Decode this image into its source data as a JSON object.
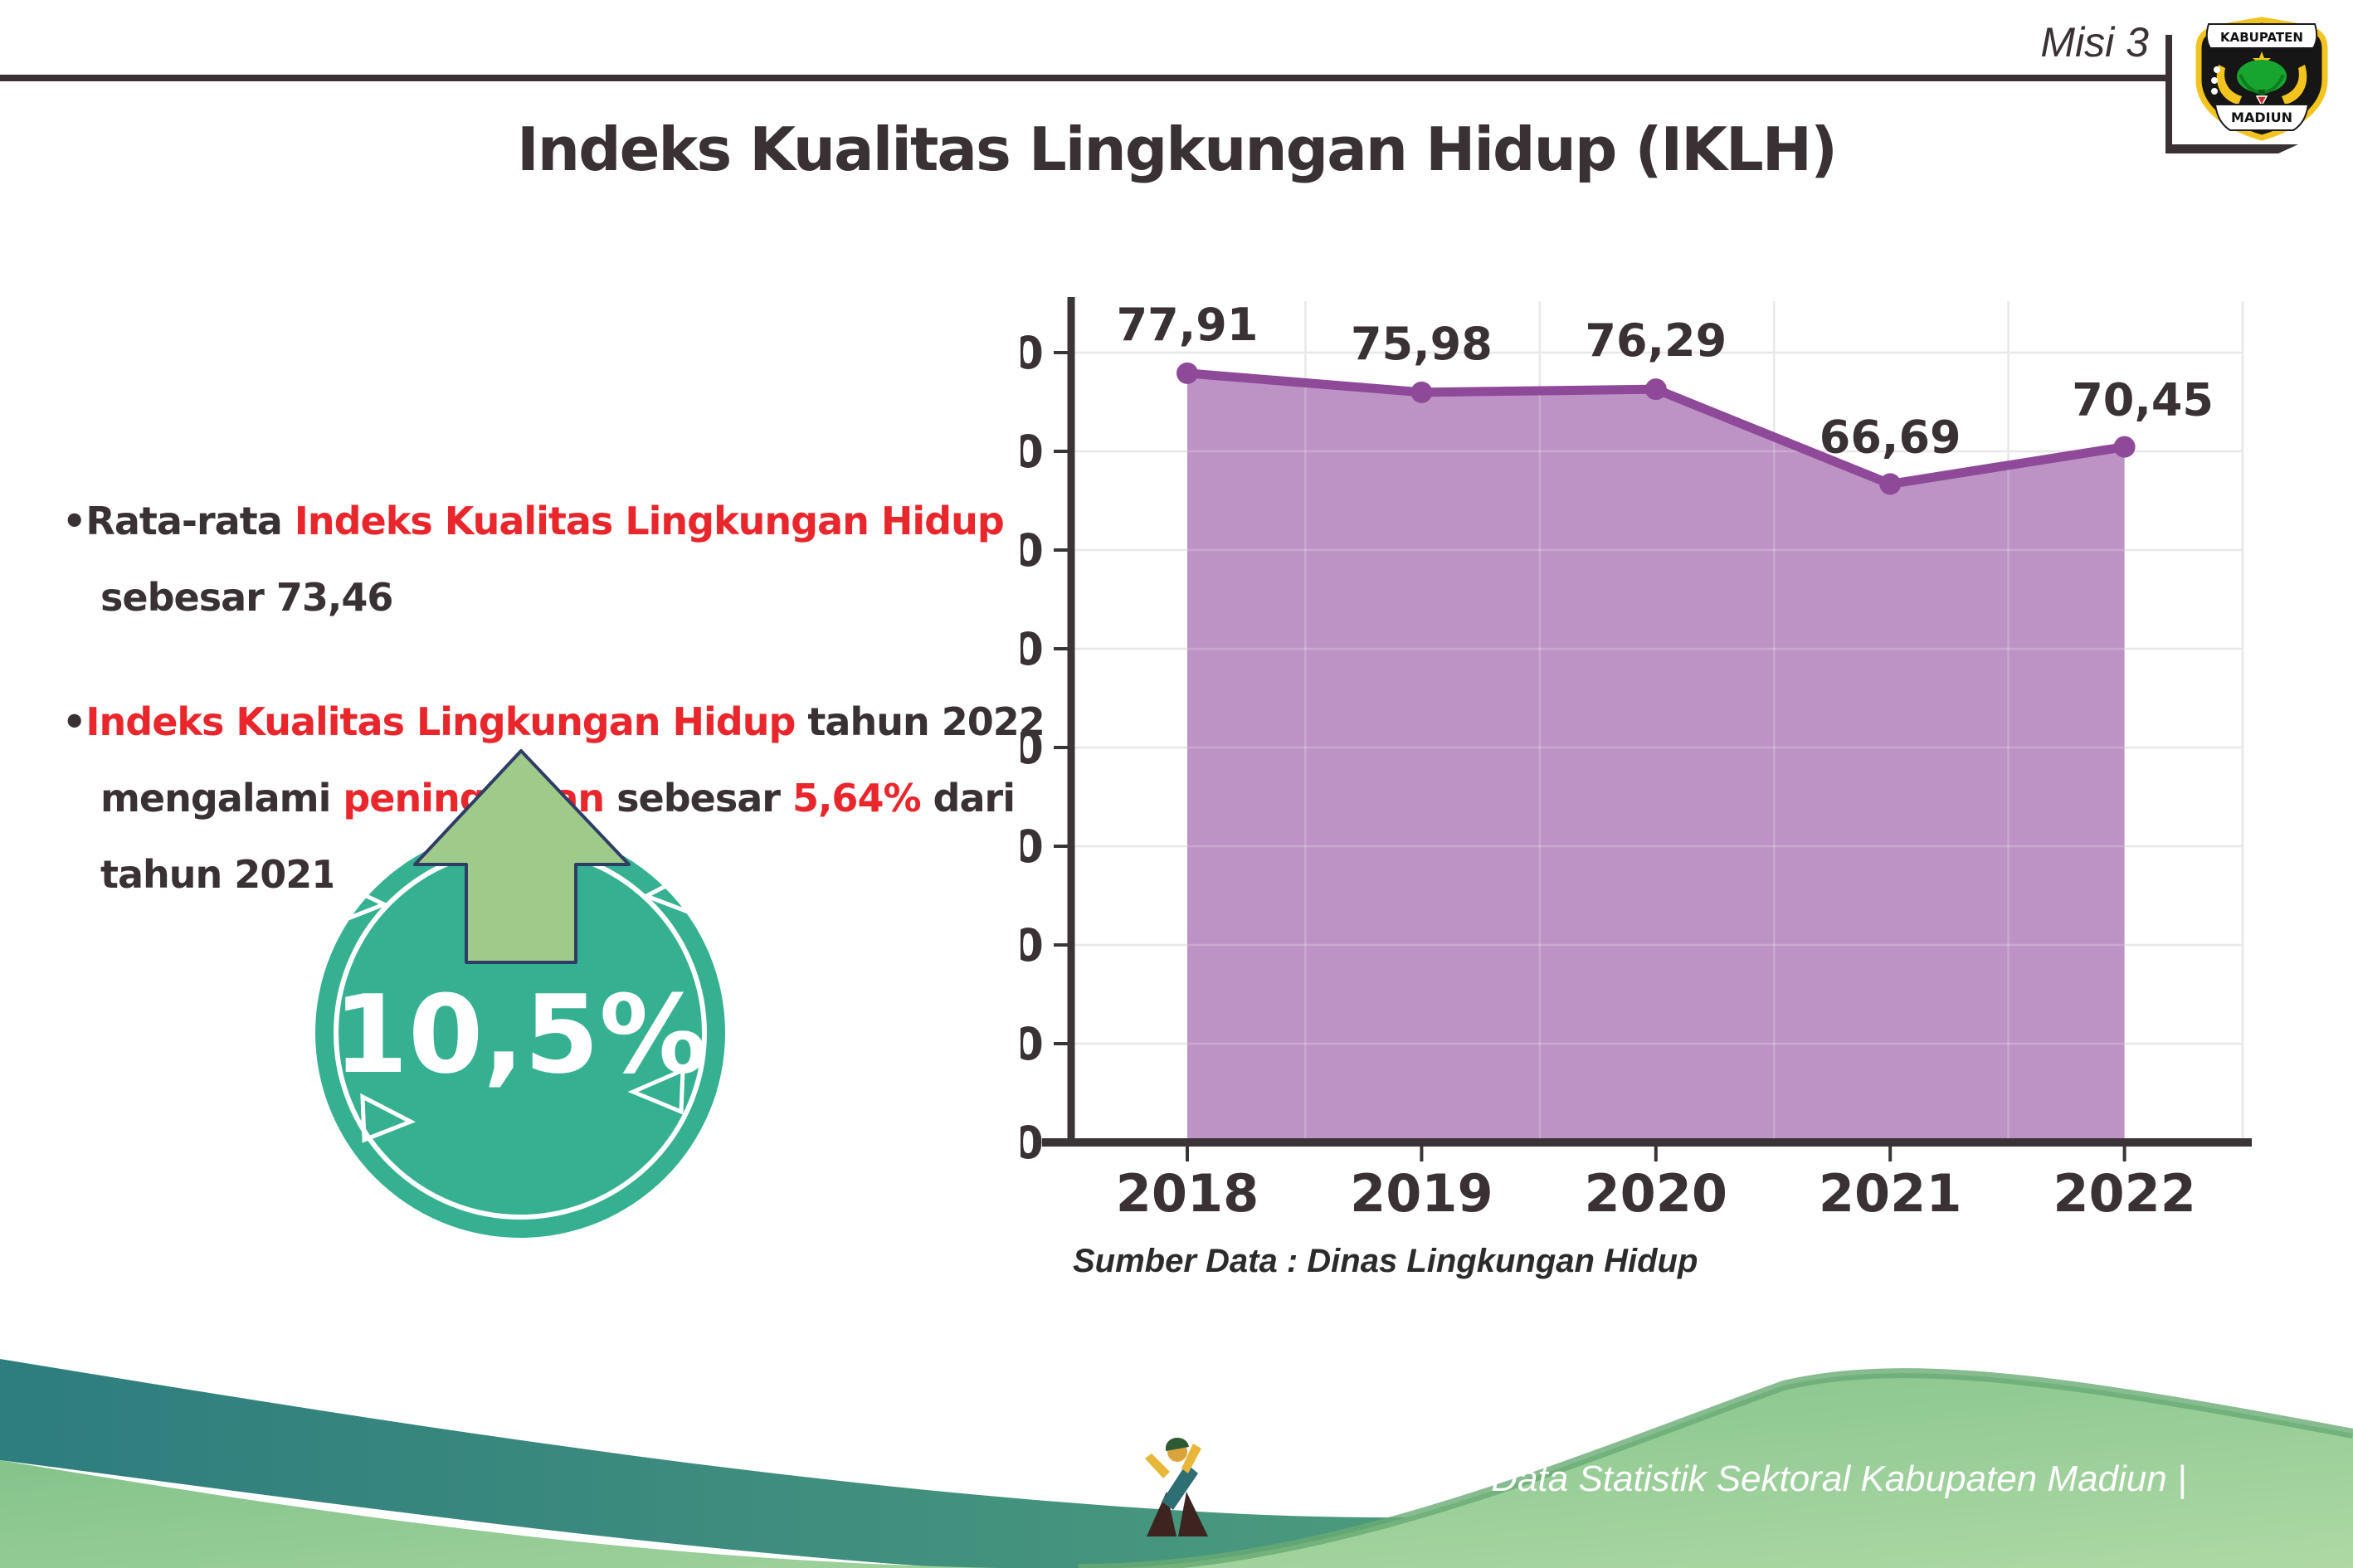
{
  "header": {
    "misi": "Misi 3",
    "title": "Indeks Kualitas Lingkungan Hidup (IKLH)"
  },
  "logo": {
    "top": "KABUPATEN",
    "bottom": "MADIUN"
  },
  "bullets": [
    {
      "lines": [
        [
          {
            "t": "Rata-rata ",
            "c": "dark"
          },
          {
            "t": "Indeks Kualitas Lingkungan Hidup",
            "c": "red"
          }
        ],
        [
          {
            "t": "sebesar 73,46",
            "c": "dark"
          }
        ]
      ]
    },
    {
      "lines": [
        [
          {
            "t": "Indeks Kualitas Lingkungan Hidup",
            "c": "red"
          },
          {
            "t": " tahun 2022",
            "c": "dark"
          }
        ],
        [
          {
            "t": "mengalami ",
            "c": "dark"
          },
          {
            "t": "peningkatan",
            "c": "red"
          },
          {
            "t": " sebesar ",
            "c": "dark"
          },
          {
            "t": "5,64%",
            "c": "red"
          },
          {
            "t": " dari",
            "c": "dark"
          }
        ],
        [
          {
            "t": "tahun 2021",
            "c": "dark"
          }
        ]
      ]
    }
  ],
  "badge": {
    "percent": "10,5%",
    "circle_color": "#35b191",
    "arrow_color": "#9fca8a",
    "arrow_outline": "#2e3d66"
  },
  "chart_data": {
    "type": "area",
    "categories": [
      "2018",
      "2019",
      "2020",
      "2021",
      "2022"
    ],
    "values": [
      77.91,
      75.98,
      76.29,
      66.69,
      70.45
    ],
    "value_labels": [
      "77,91",
      "75,98",
      "76,29",
      "66,69",
      "70,45"
    ],
    "ylim": [
      0,
      80
    ],
    "ytick_step": 10,
    "grid": true,
    "legend": "none",
    "line_color": "#8e4a99",
    "fill_color": "#b78ac0",
    "grid_color": "#e4e1e1",
    "axis_color": "#3b3436",
    "source": "Sumber Data : Dinas Lingkungan Hidup"
  },
  "footer": {
    "caption": "Media Infografis Data Statistik Sektoral Kabupaten Madiun |",
    "teal_color": "#2e7d7f",
    "green_color": "#8fc98c"
  },
  "colors": {
    "dark_text": "#3a3134",
    "red_text": "#e8262c",
    "logo_yellow": "#f2c41d"
  }
}
